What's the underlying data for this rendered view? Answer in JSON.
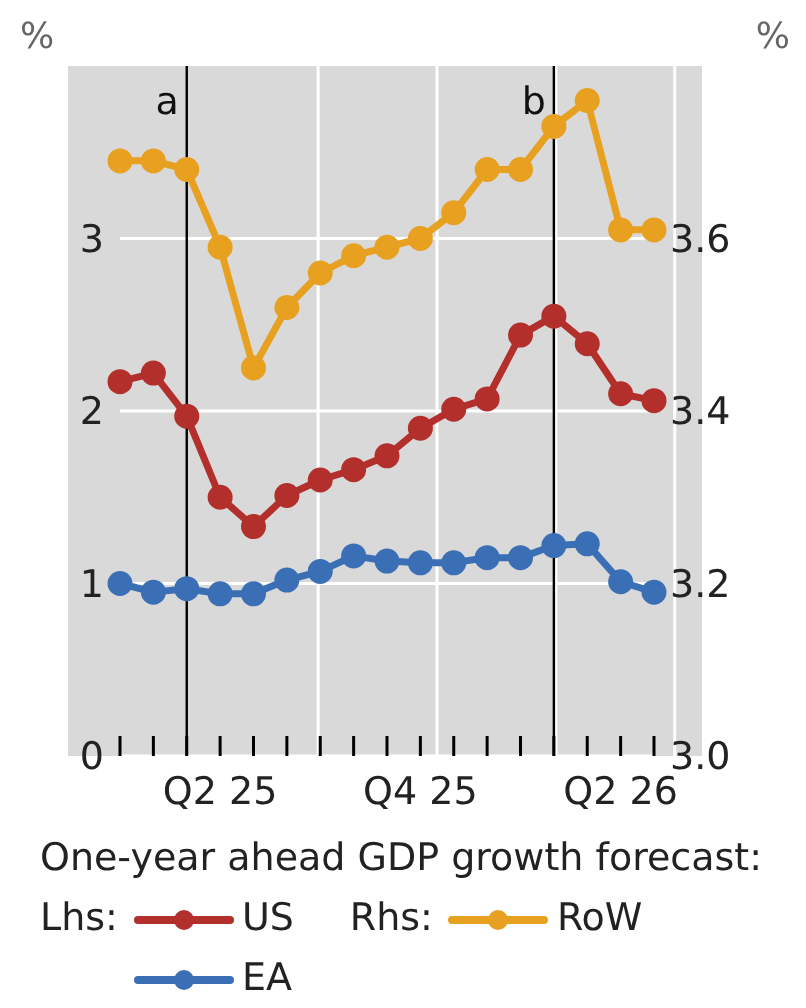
{
  "chart_data": {
    "type": "line",
    "xlabel": null,
    "ylabel": "%",
    "y2label": "%",
    "legend_title": "One-year ahead GDP growth forecast:",
    "annotations": [
      "Lhs:",
      "Rhs:",
      "a",
      "b"
    ],
    "categories": [
      null,
      null,
      null,
      "Q2 25",
      null,
      null,
      null,
      null,
      null,
      "Q4 25",
      null,
      null,
      null,
      null,
      null,
      "Q2 26",
      null
    ],
    "ylim": [
      0,
      4
    ],
    "yticks": [
      0,
      1,
      2,
      3
    ],
    "y2lim": [
      3.0,
      3.8
    ],
    "y2ticks": [
      {
        "value": 3.0,
        "label": "3.0"
      },
      {
        "value": 3.2,
        "label": "3.2"
      },
      {
        "value": 3.4,
        "label": "3.4"
      },
      {
        "value": 3.6,
        "label": "3.6"
      }
    ],
    "series": [
      {
        "name": "US",
        "color": "#b22f2b",
        "values": [
          2.17,
          2.22,
          1.97,
          1.5,
          1.33,
          1.51,
          1.6,
          1.66,
          1.74,
          1.9,
          2.01,
          2.07,
          2.44,
          2.55,
          2.39,
          2.1,
          2.06
        ]
      },
      {
        "name": "EA",
        "color": "#3a6fb5",
        "values": [
          1.0,
          0.95,
          0.97,
          0.94,
          0.94,
          1.02,
          1.07,
          1.16,
          1.13,
          1.12,
          1.12,
          1.15,
          1.15,
          1.22,
          1.23,
          1.01,
          0.95
        ]
      },
      {
        "name": "RoW",
        "color": "#e8a020",
        "axis": "y2",
        "values": [
          3.69,
          3.69,
          3.68,
          3.59,
          3.45,
          3.52,
          3.56,
          3.58,
          3.59,
          3.6,
          3.63,
          3.68,
          3.68,
          3.73,
          3.76,
          3.61,
          3.61
        ]
      }
    ],
    "grid": true,
    "legend": "bottom",
    "marker": "circle",
    "line_style": "solid"
  }
}
